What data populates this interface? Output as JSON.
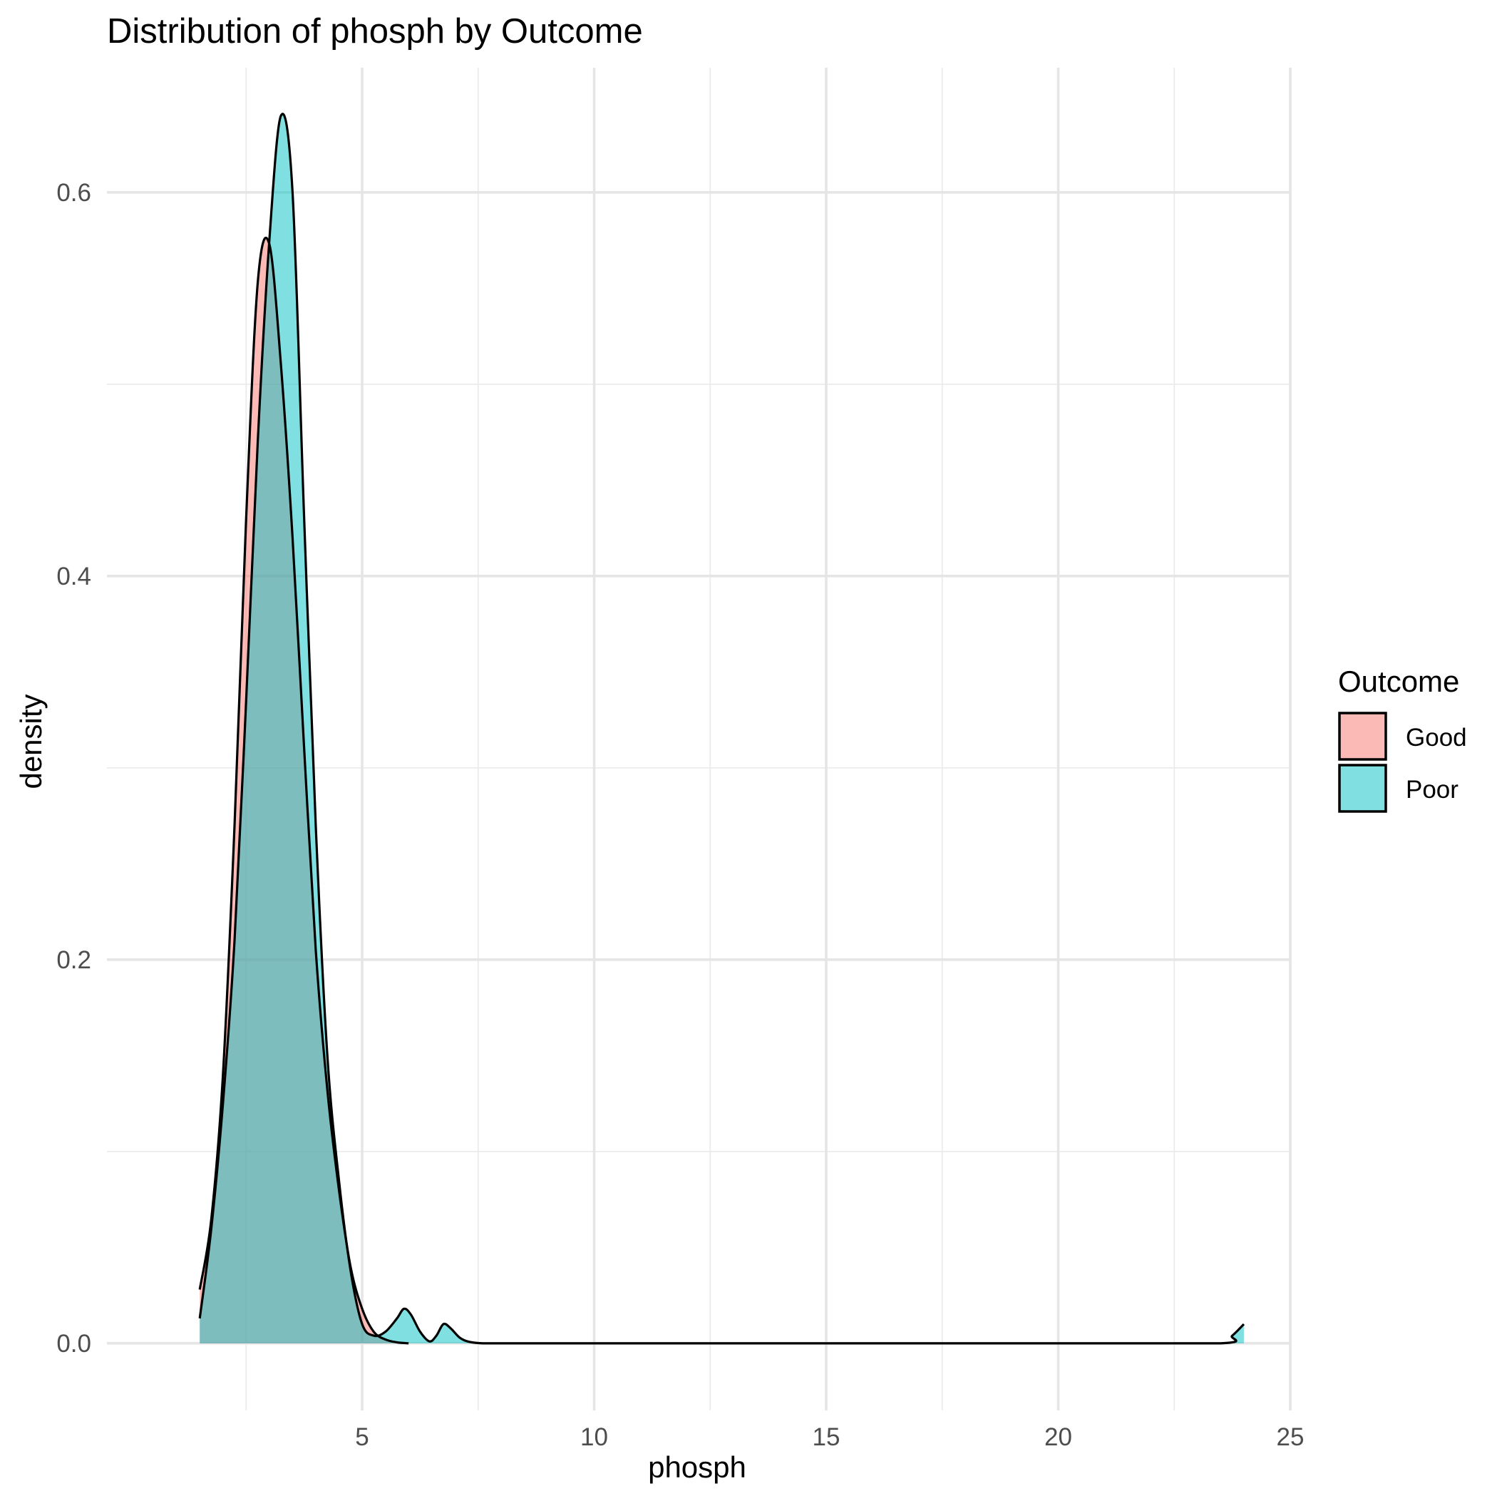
{
  "chart_data": {
    "type": "area",
    "title": "Distribution of phosph by Outcome",
    "xlabel": "phosph",
    "ylabel": "density",
    "xlim": [
      -0.5,
      25
    ],
    "ylim": [
      -0.035,
      0.665
    ],
    "x_ticks": [
      5,
      10,
      15,
      20,
      25
    ],
    "y_ticks": [
      0.0,
      0.2,
      0.4,
      0.6
    ],
    "grid": true,
    "legend_title": "Outcome",
    "legend_position": "right",
    "series": [
      {
        "name": "Good",
        "color": "#F8766D",
        "x": [
          1.5,
          1.75,
          2.0,
          2.25,
          2.5,
          2.75,
          3.0,
          3.25,
          3.5,
          3.75,
          4.0,
          4.25,
          4.5,
          4.75,
          5.0,
          5.25,
          5.5,
          5.75,
          6.0
        ],
        "y": [
          0.028,
          0.065,
          0.14,
          0.27,
          0.43,
          0.553,
          0.573,
          0.51,
          0.42,
          0.31,
          0.205,
          0.132,
          0.08,
          0.04,
          0.018,
          0.006,
          0.002,
          0.0005,
          0.0
        ]
      },
      {
        "name": "Poor",
        "color": "#00BFC4",
        "x": [
          1.5,
          1.75,
          2.0,
          2.25,
          2.5,
          2.75,
          3.0,
          3.25,
          3.5,
          3.75,
          4.0,
          4.25,
          4.5,
          4.75,
          5.0,
          5.25,
          5.5,
          5.75,
          5.9,
          6.05,
          6.25,
          6.45,
          6.6,
          6.75,
          6.9,
          7.1,
          7.3,
          7.6,
          8.0,
          10.0,
          15.0,
          20.0,
          23.5,
          23.75,
          24.0
        ],
        "y": [
          0.013,
          0.06,
          0.125,
          0.21,
          0.335,
          0.47,
          0.575,
          0.64,
          0.6,
          0.43,
          0.27,
          0.15,
          0.085,
          0.038,
          0.01,
          0.004,
          0.006,
          0.013,
          0.018,
          0.015,
          0.006,
          0.001,
          0.004,
          0.01,
          0.008,
          0.003,
          0.0008,
          0.0,
          0.0,
          0.0,
          0.0,
          0.0,
          0.0,
          0.004,
          0.01
        ]
      }
    ]
  }
}
